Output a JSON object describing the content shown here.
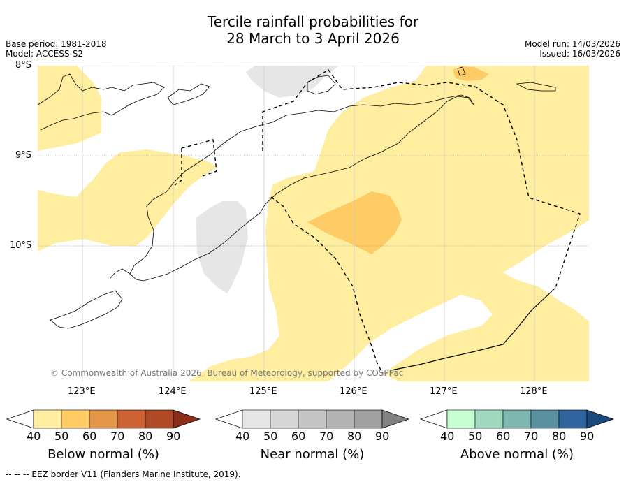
{
  "title": {
    "line1": "Tercile rainfall probabilities for",
    "line2": "28 March to 3 April 2026"
  },
  "meta": {
    "base_period": "Base period: 1981-2018",
    "model": "Model: ACCESS-S2",
    "model_run": "Model run: 14/03/2026",
    "issued": "Issued: 16/03/2026"
  },
  "map": {
    "lat_labels": [
      "8°S",
      "9°S",
      "10°S"
    ],
    "lon_labels": [
      "123°E",
      "124°E",
      "125°E",
      "126°E",
      "127°E",
      "128°E"
    ],
    "copyright": "© Commonwealth of Australia 2026, Bureau of Meteorology, supported by COSPPac"
  },
  "colorbars": [
    {
      "name": "below",
      "title": "Below normal (%)",
      "ticks": [
        "40",
        "50",
        "60",
        "70",
        "80",
        "90"
      ],
      "colors": [
        "#ffffff",
        "#ffeda0",
        "#fecb65",
        "#e3954a",
        "#cd6232",
        "#b04a26",
        "#8c2f1a"
      ]
    },
    {
      "name": "near",
      "title": "Near normal (%)",
      "ticks": [
        "40",
        "50",
        "60",
        "70",
        "80",
        "90"
      ],
      "colors": [
        "#ffffff",
        "#e6e6e6",
        "#d6d6d6",
        "#c4c4c4",
        "#b3b3b3",
        "#a1a1a1",
        "#828282"
      ]
    },
    {
      "name": "above",
      "title": "Above normal (%)",
      "ticks": [
        "40",
        "50",
        "60",
        "70",
        "80",
        "90"
      ],
      "colors": [
        "#ffffff",
        "#c8ffd0",
        "#a0d9c0",
        "#7db7b0",
        "#5a91a0",
        "#30649c",
        "#1a4a7e"
      ]
    }
  ],
  "palette": {
    "yellow": "#ffeda0",
    "orange": "#fecb65",
    "grey": "#e6e6e6",
    "grid": "#999999"
  },
  "footnote": "--  --  -- EEZ border V11 (Flanders Marine Institute, 2019)."
}
